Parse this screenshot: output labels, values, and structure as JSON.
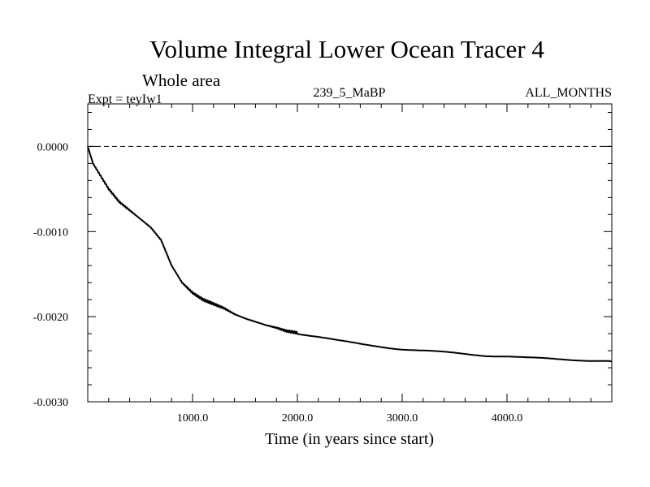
{
  "chart_data": {
    "type": "line",
    "title": "Volume Integral Lower Ocean Tracer 4",
    "subtitle": "Whole area",
    "expt_label": "Expt = teyIw1",
    "center_label": "239_5_MaBP",
    "right_label": "ALL_MONTHS",
    "xlabel": "Time (in years since start)",
    "ylabel": "",
    "xlim": [
      0,
      5000
    ],
    "ylim": [
      -0.003,
      0.0005
    ],
    "x_ticks": [
      1000,
      2000,
      3000,
      4000
    ],
    "x_tick_labels": [
      "1000.0",
      "2000.0",
      "3000.0",
      "4000.0"
    ],
    "y_ticks": [
      0.0,
      -0.001,
      -0.002,
      -0.003
    ],
    "y_tick_labels": [
      "0.0000",
      "-0.0010",
      "-0.0020",
      "-0.0030"
    ],
    "reference_line": 0.0,
    "series": [
      {
        "name": "teyIw1",
        "x": [
          0,
          50,
          100,
          200,
          300,
          400,
          500,
          600,
          700,
          750,
          800,
          900,
          1000,
          1100,
          1200,
          1300,
          1400,
          1500,
          1600,
          1700,
          1800,
          1900,
          2000,
          2200,
          2400,
          2600,
          2800,
          3000,
          3200,
          3400,
          3600,
          3800,
          4000,
          4200,
          4400,
          4600,
          4800,
          5000
        ],
        "y": [
          0.0,
          -0.0002,
          -0.0003,
          -0.0005,
          -0.00065,
          -0.00075,
          -0.00085,
          -0.00095,
          -0.0011,
          -0.00125,
          -0.0014,
          -0.0016,
          -0.00172,
          -0.0018,
          -0.00185,
          -0.0019,
          -0.00197,
          -0.00202,
          -0.00206,
          -0.0021,
          -0.00213,
          -0.00217,
          -0.00219,
          -0.00223,
          -0.00228,
          -0.00232,
          -0.00235,
          -0.00238,
          -0.0024,
          -0.00242,
          -0.00244,
          -0.00246,
          -0.00247,
          -0.00249,
          -0.0025,
          -0.00251,
          -0.00252,
          -0.00253
        ]
      }
    ]
  }
}
